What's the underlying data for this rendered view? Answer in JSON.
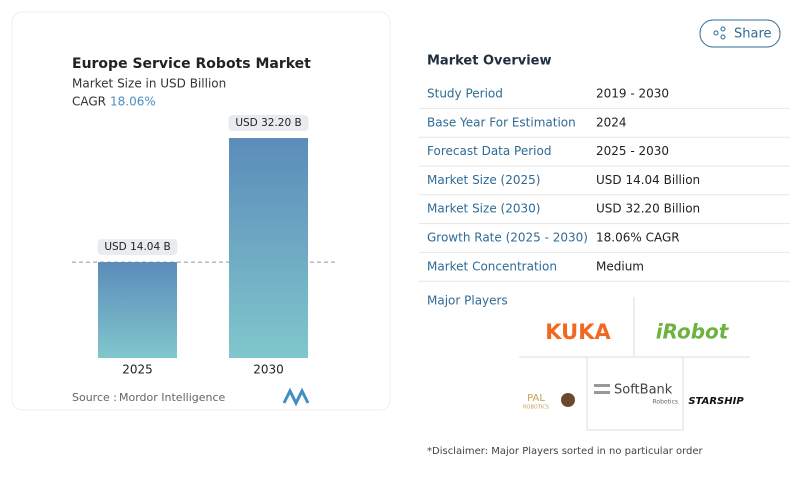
{
  "chart_data": {
    "type": "bar",
    "title": "Europe Service Robots Market",
    "subtitle": "Market Size in USD Billion",
    "cagr_label": "CAGR",
    "cagr_value": "18.06%",
    "categories": [
      "2025",
      "2030"
    ],
    "values": [
      14.04,
      32.2
    ],
    "value_labels": [
      "USD 14.04 B",
      "USD 32.20 B"
    ],
    "source_label": "Source :",
    "source": "Mordor Intelligence"
  },
  "share": "Share",
  "overview": {
    "title": "Market Overview",
    "rows": [
      [
        "Study Period",
        "2019 - 2030"
      ],
      [
        "Base Year For Estimation",
        "2024"
      ],
      [
        "Forecast Data Period",
        "2025 - 2030"
      ],
      [
        "Market Size (2025)",
        "USD 14.04 Billion"
      ],
      [
        "Market Size (2030)",
        "USD 32.20 Billion"
      ],
      [
        "Growth Rate (2025 - 2030)",
        "18.06% CAGR"
      ],
      [
        "Market Concentration",
        "Medium"
      ]
    ]
  },
  "players": {
    "title": "Major Players",
    "kuka": "KUKA",
    "irobot": "iRobot",
    "pal": "PAL",
    "pal_sub": "ROBOTICS",
    "softbank": "SoftBank",
    "softbank_sub": "Robotics",
    "starship": "STARSHIP"
  },
  "disclaimer": "*Disclaimer: Major Players sorted in no particular order"
}
